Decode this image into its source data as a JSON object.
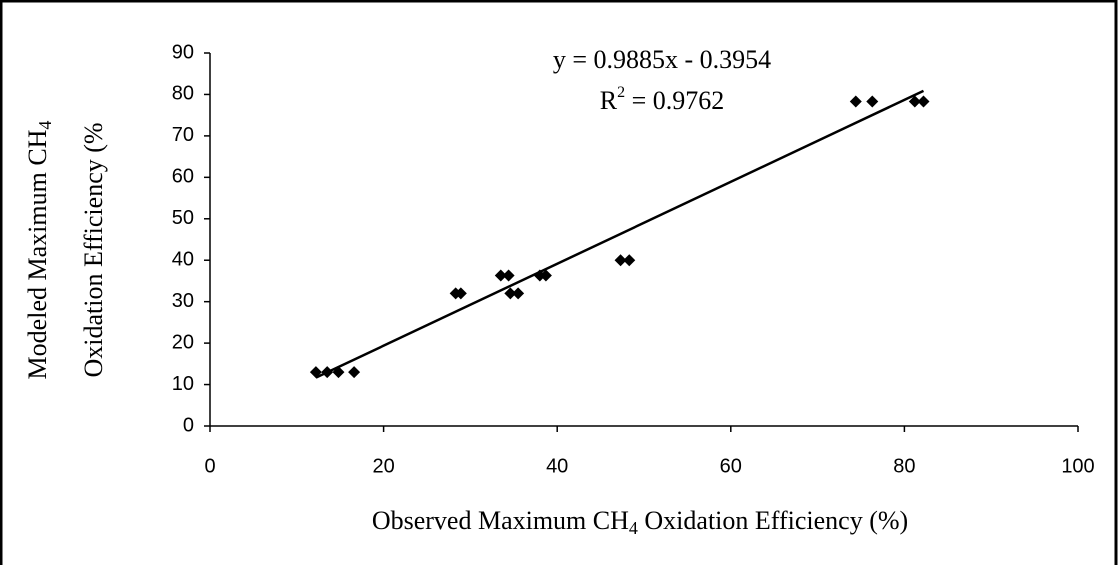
{
  "chart_data": {
    "type": "scatter",
    "x_label": [
      "Observed Maximum CH",
      "4",
      " Oxidation Efficiency (%)"
    ],
    "y_label": [
      [
        "Modeled Maximum CH",
        "4"
      ],
      [
        "Oxidation Efficiency (%"
      ]
    ],
    "x": [
      12.2,
      13.5,
      14.8,
      16.6,
      28.3,
      28.9,
      33.5,
      34.4,
      34.6,
      35.5,
      38.0,
      38.7,
      47.3,
      48.3,
      74.4,
      76.3,
      81.2,
      82.2
    ],
    "values": [
      13,
      13,
      13,
      13,
      32,
      32,
      36.3,
      36.3,
      32,
      32,
      36.3,
      36.3,
      40,
      40,
      78.3,
      78.3,
      78.3,
      78.3
    ],
    "color": "#000000",
    "trendline": {
      "slope": 0.9885,
      "intercept": -0.3954,
      "label": "y = 0.9885x - 0.3954",
      "r_squared_label": [
        "R",
        "2",
        " = 0.9762"
      ]
    },
    "xlim": [
      0,
      100
    ],
    "xticks": [
      0,
      20,
      40,
      60,
      80,
      100
    ],
    "ylim": [
      0,
      90
    ],
    "yticks": [
      0,
      10,
      20,
      30,
      40,
      50,
      60,
      70,
      80,
      90
    ],
    "grid": false
  }
}
